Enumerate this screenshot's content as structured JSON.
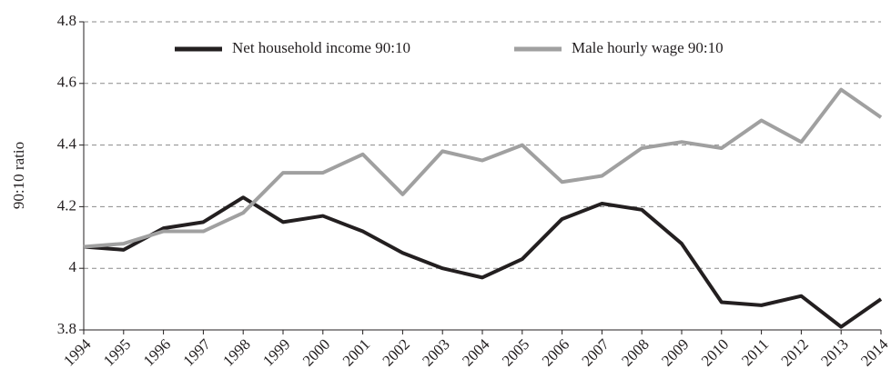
{
  "chart_data": {
    "type": "line",
    "y_label": "90:10 ratio",
    "categories": [
      "1994",
      "1995",
      "1996",
      "1997",
      "1998",
      "1999",
      "2000",
      "2001",
      "2002",
      "2003",
      "2004",
      "2005",
      "2006",
      "2007",
      "2008",
      "2009",
      "2010",
      "2011",
      "2012",
      "2013",
      "2014"
    ],
    "series": [
      {
        "name": "Net household income 90:10",
        "color": "#231f20",
        "values": [
          4.07,
          4.06,
          4.13,
          4.15,
          4.23,
          4.15,
          4.17,
          4.12,
          4.05,
          4.0,
          3.97,
          4.03,
          4.16,
          4.21,
          4.19,
          4.08,
          3.89,
          3.88,
          3.91,
          3.81,
          3.9
        ]
      },
      {
        "name": "Male hourly wage 90:10",
        "color": "#a0a0a0",
        "values": [
          4.07,
          4.08,
          4.12,
          4.12,
          4.18,
          4.31,
          4.31,
          4.37,
          4.24,
          4.38,
          4.35,
          4.4,
          4.28,
          4.3,
          4.39,
          4.41,
          4.39,
          4.48,
          4.41,
          4.58,
          4.49
        ]
      }
    ],
    "ylim": [
      3.8,
      4.8
    ],
    "yticks": [
      3.8,
      4,
      4.2,
      4.4,
      4.6,
      4.8
    ],
    "grid": true,
    "legend": "top"
  }
}
